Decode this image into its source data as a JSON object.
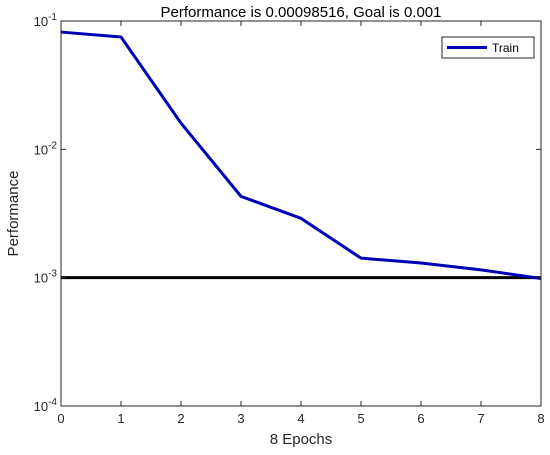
{
  "chart_data": {
    "type": "line",
    "title": "Performance is 0.00098516, Goal is 0.001",
    "xlabel": "8 Epochs",
    "ylabel": "Performance",
    "xlim": [
      0,
      8
    ],
    "ylim": [
      0.0001,
      0.1
    ],
    "yscale": "log",
    "x_ticks": [
      "0",
      "1",
      "2",
      "3",
      "4",
      "5",
      "6",
      "7",
      "8"
    ],
    "y_ticks": [
      {
        "base": "10",
        "exp": "-1",
        "value": 0.1
      },
      {
        "base": "10",
        "exp": "-2",
        "value": 0.01
      },
      {
        "base": "10",
        "exp": "-3",
        "value": 0.001
      },
      {
        "base": "10",
        "exp": "-4",
        "value": 0.0001
      }
    ],
    "grid": false,
    "legend_position": "top-right",
    "series": [
      {
        "name": "Train",
        "color": "#0000b4",
        "x": [
          0,
          1,
          2,
          3,
          4,
          5,
          6,
          7,
          8
        ],
        "values": [
          0.082,
          0.075,
          0.016,
          0.0043,
          0.0029,
          0.00142,
          0.0013,
          0.00115,
          0.00098516
        ]
      }
    ],
    "goal": {
      "value": 0.001,
      "color": "#000000"
    }
  }
}
